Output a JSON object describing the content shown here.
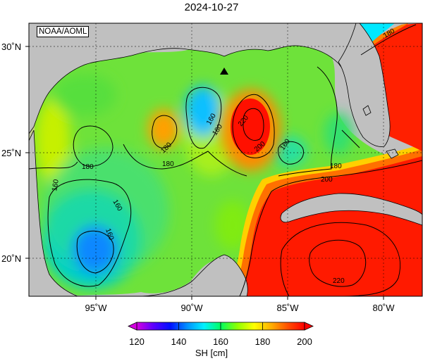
{
  "title": "2024-10-27",
  "credit": "NOAA/AOML",
  "map": {
    "variable": "SH",
    "units": "cm",
    "lon_range": [
      -98.5,
      -78
    ],
    "lat_range": [
      18,
      31
    ],
    "lon_ticks": [
      {
        "value": -95,
        "label": "95˚W"
      },
      {
        "value": -90,
        "label": "90˚W"
      },
      {
        "value": -85,
        "label": "85˚W"
      },
      {
        "value": -80,
        "label": "80˚W"
      }
    ],
    "lat_ticks": [
      {
        "value": 30,
        "label": "30˚N"
      },
      {
        "value": 25,
        "label": "25˚N"
      },
      {
        "value": 20,
        "label": "20˚N"
      }
    ],
    "grid": true,
    "land_color": "#c0c0c0",
    "marker": {
      "type": "triangle",
      "lon": -88.5,
      "lat": 28.7
    },
    "contour_labels": [
      "160",
      "180",
      "160",
      "180",
      "180",
      "220",
      "200",
      "160",
      "180",
      "200",
      "180",
      "160",
      "160",
      "180",
      "220"
    ]
  },
  "colorbar": {
    "label": "SH [cm]",
    "min": 120,
    "max": 200,
    "tick_values": [
      "120",
      "140",
      "160",
      "180",
      "200"
    ],
    "colors": [
      "#d400e0",
      "#5a00ff",
      "#0010ff",
      "#0090ff",
      "#00f0ff",
      "#00ff60",
      "#90ff00",
      "#ffff00",
      "#ffb000",
      "#ff5000",
      "#ff0000"
    ]
  }
}
